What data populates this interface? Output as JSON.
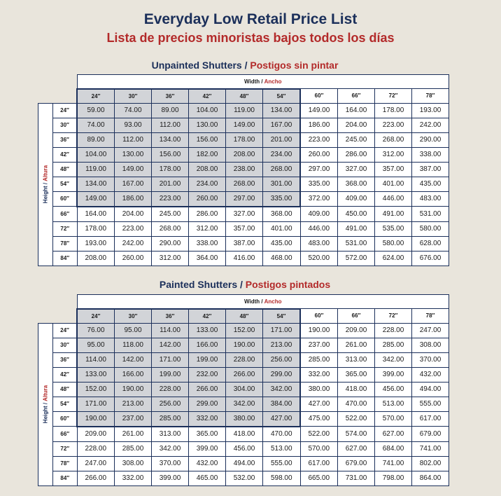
{
  "header": {
    "title": "Everyday Low Retail Price List",
    "subtitle": "Lista de precios minoristas bajos todos los días"
  },
  "labels": {
    "width_en": "Width",
    "width_sep": "/",
    "width_es": "Ancho",
    "height_en": "Height",
    "height_sep": "/",
    "height_es": "Altura"
  },
  "columns": [
    "24″",
    "30″",
    "36″",
    "42″",
    "48″",
    "54″",
    "60″",
    "66″",
    "72″",
    "78″"
  ],
  "rows": [
    "24″",
    "30″",
    "36″",
    "42″",
    "48″",
    "54″",
    "60″",
    "66″",
    "72″",
    "78″",
    "84″"
  ],
  "highlight": {
    "cols": 6,
    "rows": 7
  },
  "sections": [
    {
      "title_en": "Unpainted Shutters",
      "separator": "/",
      "title_es": "Postigos sin pintar",
      "prices": [
        [
          "59.00",
          "74.00",
          "89.00",
          "104.00",
          "119.00",
          "134.00",
          "149.00",
          "164.00",
          "178.00",
          "193.00"
        ],
        [
          "74.00",
          "93.00",
          "112.00",
          "130.00",
          "149.00",
          "167.00",
          "186.00",
          "204.00",
          "223.00",
          "242.00"
        ],
        [
          "89.00",
          "112.00",
          "134.00",
          "156.00",
          "178.00",
          "201.00",
          "223.00",
          "245.00",
          "268.00",
          "290.00"
        ],
        [
          "104.00",
          "130.00",
          "156.00",
          "182.00",
          "208.00",
          "234.00",
          "260.00",
          "286.00",
          "312.00",
          "338.00"
        ],
        [
          "119.00",
          "149.00",
          "178.00",
          "208.00",
          "238.00",
          "268.00",
          "297.00",
          "327.00",
          "357.00",
          "387.00"
        ],
        [
          "134.00",
          "167.00",
          "201.00",
          "234.00",
          "268.00",
          "301.00",
          "335.00",
          "368.00",
          "401.00",
          "435.00"
        ],
        [
          "149.00",
          "186.00",
          "223.00",
          "260.00",
          "297.00",
          "335.00",
          "372.00",
          "409.00",
          "446.00",
          "483.00"
        ],
        [
          "164.00",
          "204.00",
          "245.00",
          "286.00",
          "327.00",
          "368.00",
          "409.00",
          "450.00",
          "491.00",
          "531.00"
        ],
        [
          "178.00",
          "223.00",
          "268.00",
          "312.00",
          "357.00",
          "401.00",
          "446.00",
          "491.00",
          "535.00",
          "580.00"
        ],
        [
          "193.00",
          "242.00",
          "290.00",
          "338.00",
          "387.00",
          "435.00",
          "483.00",
          "531.00",
          "580.00",
          "628.00"
        ],
        [
          "208.00",
          "260.00",
          "312.00",
          "364.00",
          "416.00",
          "468.00",
          "520.00",
          "572.00",
          "624.00",
          "676.00"
        ]
      ]
    },
    {
      "title_en": "Painted Shutters",
      "separator": "/",
      "title_es": "Postigos pintados",
      "prices": [
        [
          "76.00",
          "95.00",
          "114.00",
          "133.00",
          "152.00",
          "171.00",
          "190.00",
          "209.00",
          "228.00",
          "247.00"
        ],
        [
          "95.00",
          "118.00",
          "142.00",
          "166.00",
          "190.00",
          "213.00",
          "237.00",
          "261.00",
          "285.00",
          "308.00"
        ],
        [
          "114.00",
          "142.00",
          "171.00",
          "199.00",
          "228.00",
          "256.00",
          "285.00",
          "313.00",
          "342.00",
          "370.00"
        ],
        [
          "133.00",
          "166.00",
          "199.00",
          "232.00",
          "266.00",
          "299.00",
          "332.00",
          "365.00",
          "399.00",
          "432.00"
        ],
        [
          "152.00",
          "190.00",
          "228.00",
          "266.00",
          "304.00",
          "342.00",
          "380.00",
          "418.00",
          "456.00",
          "494.00"
        ],
        [
          "171.00",
          "213.00",
          "256.00",
          "299.00",
          "342.00",
          "384.00",
          "427.00",
          "470.00",
          "513.00",
          "555.00"
        ],
        [
          "190.00",
          "237.00",
          "285.00",
          "332.00",
          "380.00",
          "427.00",
          "475.00",
          "522.00",
          "570.00",
          "617.00"
        ],
        [
          "209.00",
          "261.00",
          "313.00",
          "365.00",
          "418.00",
          "470.00",
          "522.00",
          "574.00",
          "627.00",
          "679.00"
        ],
        [
          "228.00",
          "285.00",
          "342.00",
          "399.00",
          "456.00",
          "513.00",
          "570.00",
          "627.00",
          "684.00",
          "741.00"
        ],
        [
          "247.00",
          "308.00",
          "370.00",
          "432.00",
          "494.00",
          "555.00",
          "617.00",
          "679.00",
          "741.00",
          "802.00"
        ],
        [
          "266.00",
          "332.00",
          "399.00",
          "465.00",
          "532.00",
          "598.00",
          "665.00",
          "731.00",
          "798.00",
          "864.00"
        ]
      ]
    }
  ]
}
